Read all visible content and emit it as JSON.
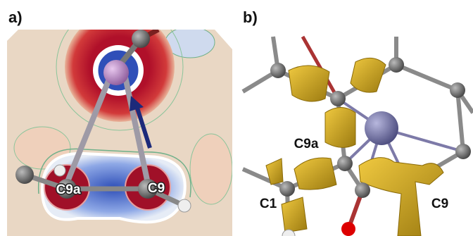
{
  "panels": [
    {
      "label": "a)",
      "atoms": [
        "C9a",
        "C9"
      ]
    },
    {
      "label": "b)",
      "atoms": [
        "C9a",
        "C1",
        "C9"
      ]
    }
  ]
}
